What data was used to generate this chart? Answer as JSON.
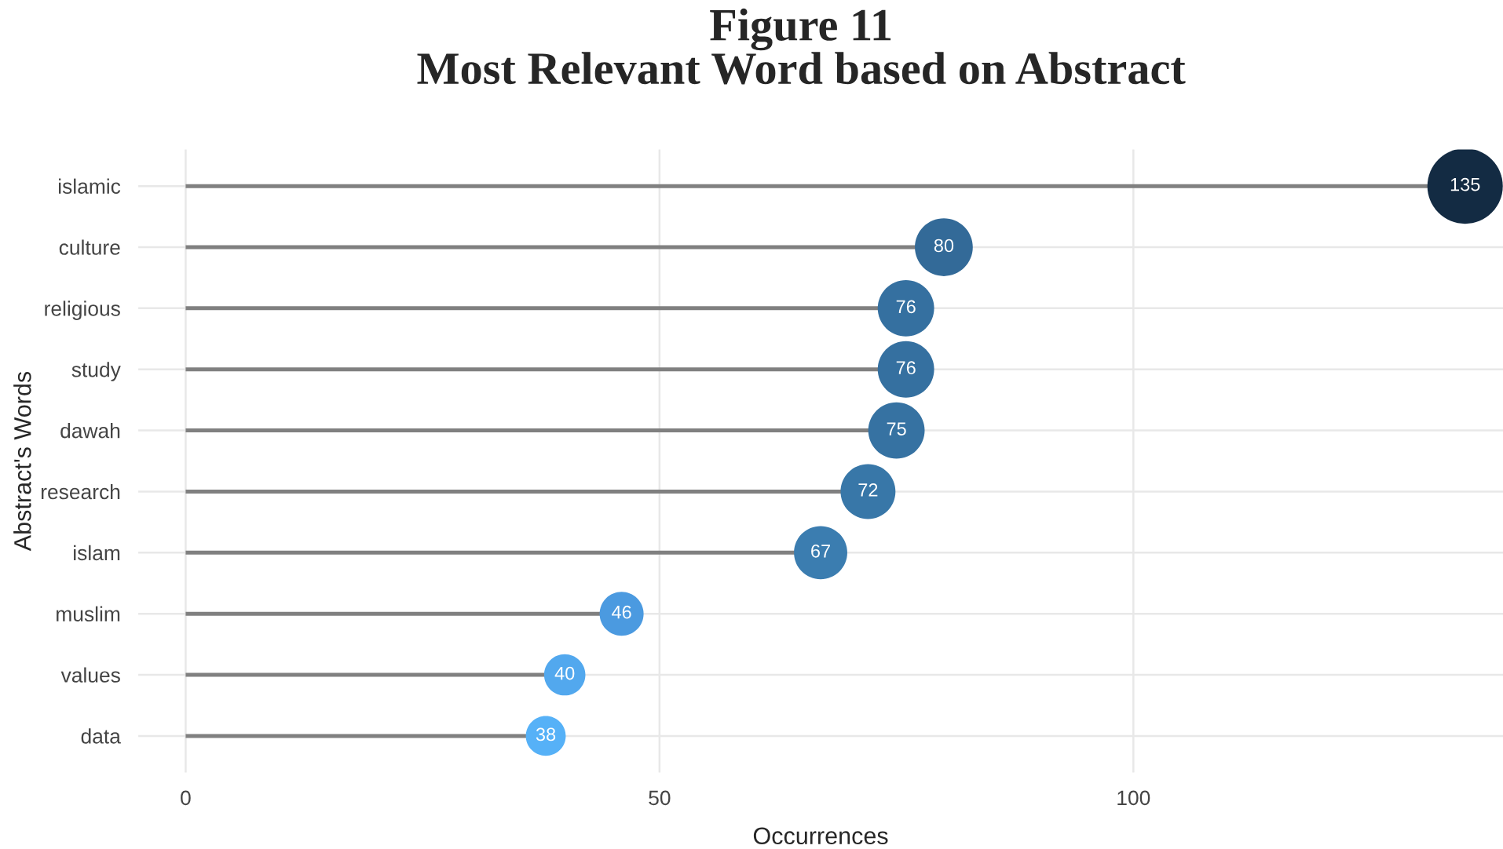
{
  "chart_data": {
    "type": "lollipop",
    "orientation": "horizontal",
    "title": "Figure 11\nMost Relevant Word based on Abstract",
    "xlabel": "Occurrences",
    "ylabel": "Abstract's Words",
    "categories": [
      "islamic",
      "culture",
      "religious",
      "study",
      "dawah",
      "research",
      "islam",
      "muslim",
      "values",
      "data"
    ],
    "values": [
      135,
      80,
      76,
      76,
      75,
      72,
      67,
      46,
      40,
      38
    ],
    "sizes": [
      1,
      0.59,
      0.56,
      0.56,
      0.56,
      0.53,
      0.5,
      0.34,
      0.3,
      0.28
    ],
    "colors": [
      "#132b43",
      "#336a98",
      "#3570a0",
      "#3570a0",
      "#3672a2",
      "#3877a8",
      "#3b7db0",
      "#4b9ae0",
      "#52a8ee",
      "#56b1f7"
    ],
    "xlim": [
      -5,
      139
    ],
    "xticks": [
      0,
      50,
      100
    ],
    "grid": true,
    "data_labels": true
  }
}
